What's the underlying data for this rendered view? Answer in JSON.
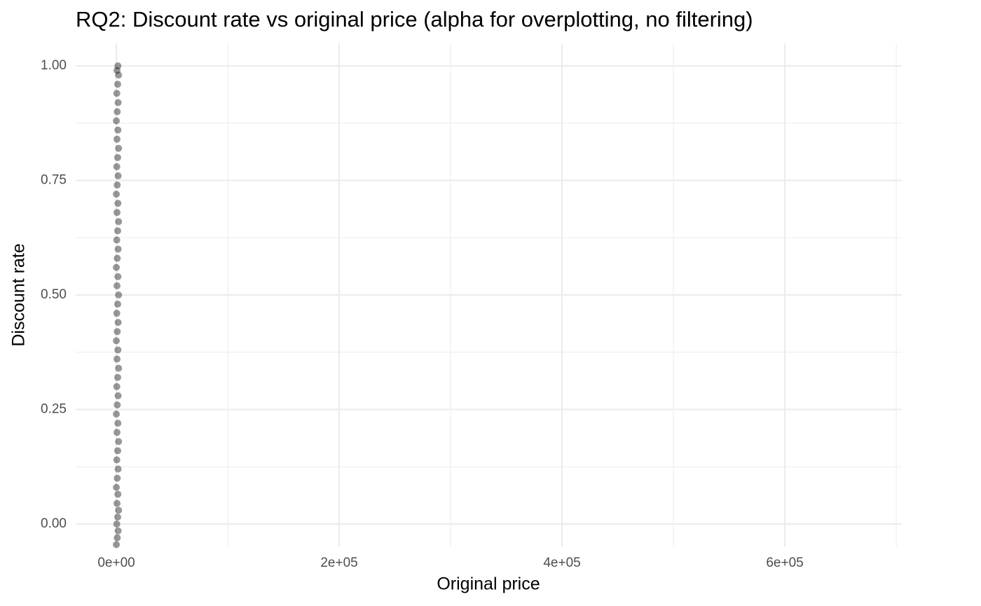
{
  "chart_data": {
    "type": "scatter",
    "title": "RQ2: Discount rate vs original price (alpha for overplotting, no filtering)",
    "x_label": "Original price",
    "y_label": "Discount rate",
    "xlim": [
      -36500,
      705000
    ],
    "ylim": [
      -0.049,
      1.049
    ],
    "xticks": [
      {
        "value": 0,
        "label": "0e+00"
      },
      {
        "value": 200000,
        "label": "2e+05"
      },
      {
        "value": 400000,
        "label": "4e+05"
      },
      {
        "value": 600000,
        "label": "6e+05"
      }
    ],
    "yticks": [
      {
        "value": 0,
        "label": "0.00"
      },
      {
        "value": 0.25,
        "label": "0.25"
      },
      {
        "value": 0.5,
        "label": "0.50"
      },
      {
        "value": 0.75,
        "label": "0.75"
      },
      {
        "value": 1,
        "label": "1.00"
      }
    ],
    "x_minor_grid": [
      100000,
      300000,
      500000,
      700000
    ],
    "y_minor_grid": [
      0.125,
      0.375,
      0.625,
      0.875
    ],
    "grid": true,
    "color": "#000000",
    "x": [
      0,
      800,
      1600,
      400,
      1200,
      2000,
      600,
      1400,
      0,
      800,
      1600,
      400,
      1200,
      2000,
      600,
      1400,
      0,
      800,
      1600,
      400,
      1200,
      2000,
      600,
      1400,
      0,
      800,
      1600,
      400,
      1200,
      2000,
      600,
      1400,
      0,
      800,
      1600,
      400,
      1200,
      2000,
      600,
      1400,
      0,
      800,
      1600,
      400,
      1200,
      2000,
      600,
      1400,
      0,
      800,
      1600,
      400,
      1200,
      2000,
      600,
      1400
    ],
    "y": [
      -0.045,
      -0.03,
      -0.015,
      0,
      0.015,
      0.03,
      0.045,
      0.065,
      0.08,
      0.1,
      0.12,
      0.14,
      0.16,
      0.18,
      0.2,
      0.22,
      0.24,
      0.26,
      0.28,
      0.3,
      0.32,
      0.34,
      0.36,
      0.38,
      0.4,
      0.42,
      0.44,
      0.46,
      0.48,
      0.5,
      0.52,
      0.54,
      0.56,
      0.58,
      0.6,
      0.62,
      0.64,
      0.66,
      0.68,
      0.7,
      0.72,
      0.74,
      0.76,
      0.78,
      0.8,
      0.82,
      0.84,
      0.86,
      0.88,
      0.9,
      0.92,
      0.94,
      0.96,
      0.98,
      0.99,
      1.0
    ]
  }
}
